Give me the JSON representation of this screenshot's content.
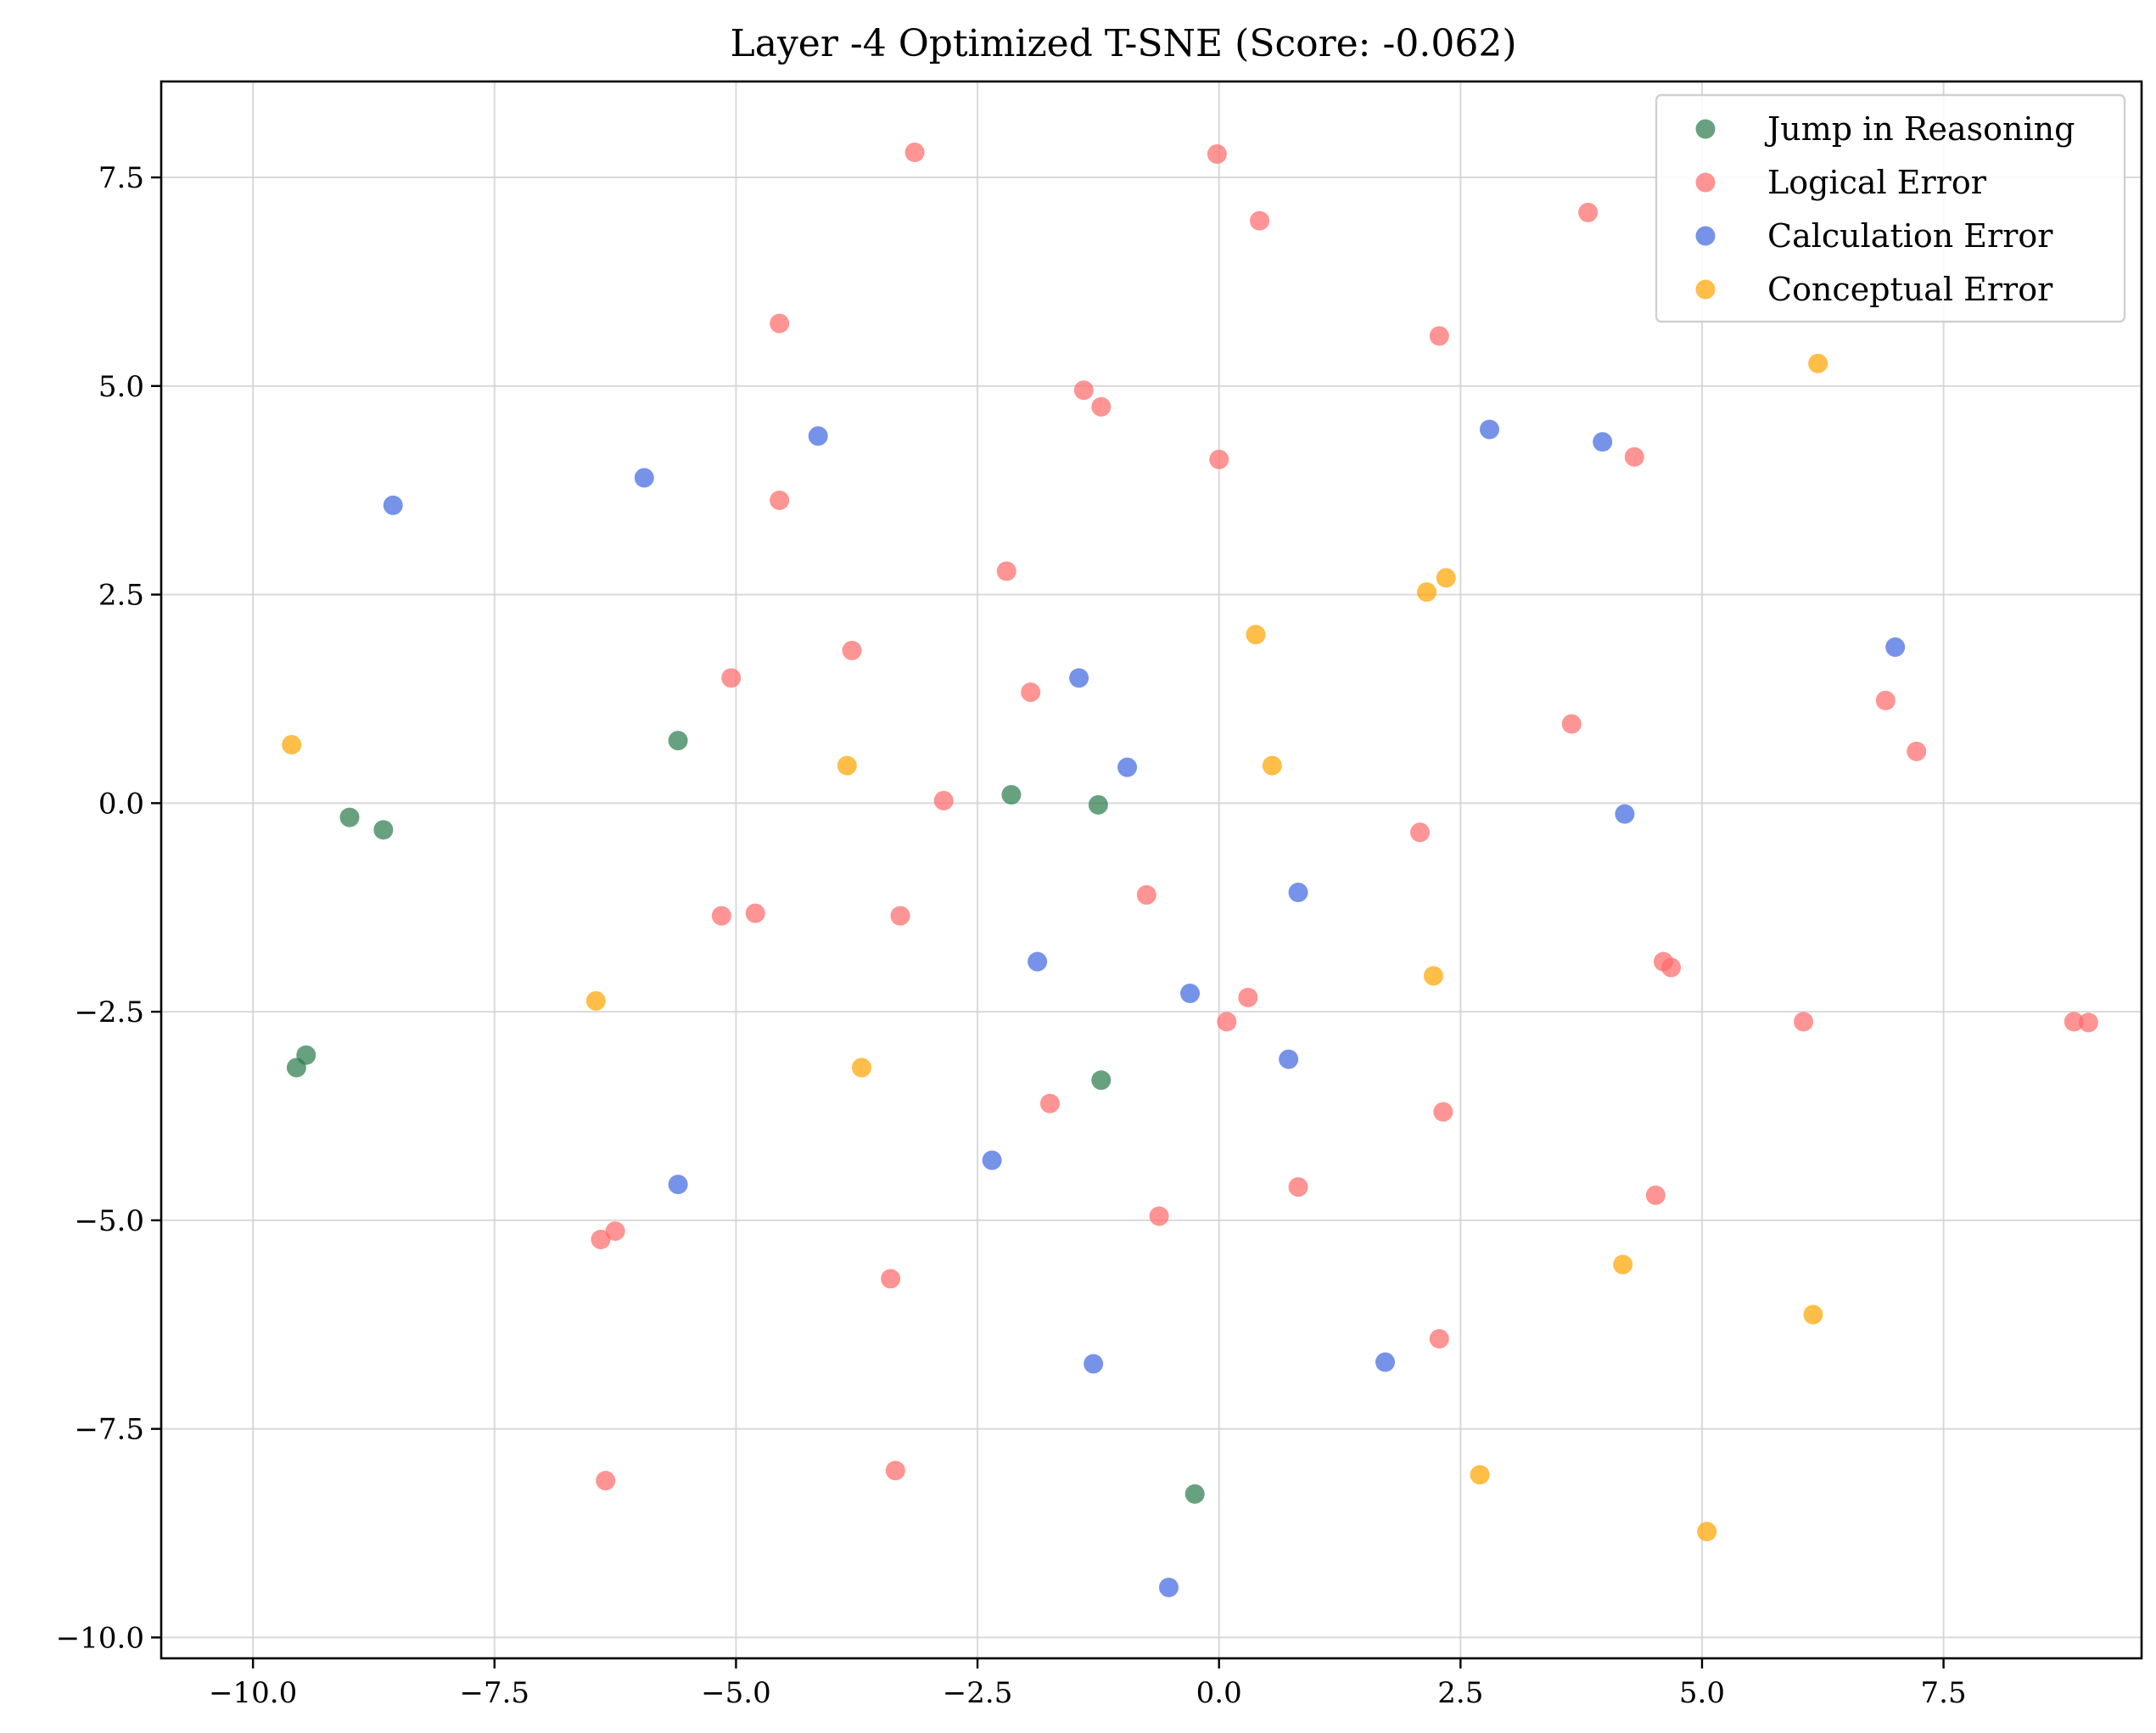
{
  "chart_data": {
    "type": "scatter",
    "title": "Layer -4 Optimized T-SNE (Score: -0.062)",
    "xlabel": "",
    "ylabel": "",
    "xlim": [
      -10.95,
      9.55
    ],
    "ylim": [
      -10.25,
      8.65
    ],
    "xticks": [
      -10.0,
      -7.5,
      -5.0,
      -2.5,
      0.0,
      2.5,
      5.0,
      7.5
    ],
    "yticks": [
      -10.0,
      -7.5,
      -5.0,
      -2.5,
      0.0,
      2.5,
      5.0,
      7.5
    ],
    "xtick_labels": [
      "−10.0",
      "−7.5",
      "−5.0",
      "−2.5",
      "0.0",
      "2.5",
      "5.0",
      "7.5"
    ],
    "ytick_labels": [
      "−10.0",
      "−7.5",
      "−5.0",
      "−2.5",
      "0.0",
      "2.5",
      "5.0",
      "7.5"
    ],
    "grid": true,
    "legend_position": "top-right",
    "series": [
      {
        "name": "Jump in Reasoning",
        "color": "#2e7d4f",
        "points": [
          [
            -9.0,
            -0.17
          ],
          [
            -8.65,
            -0.32
          ],
          [
            -5.6,
            0.75
          ],
          [
            -2.15,
            0.1
          ],
          [
            -1.25,
            -0.02
          ],
          [
            -9.45,
            -3.02
          ],
          [
            -9.55,
            -3.17
          ],
          [
            -1.22,
            -3.32
          ],
          [
            -0.25,
            -8.28
          ]
        ]
      },
      {
        "name": "Logical Error",
        "color": "#ff6b6b",
        "points": [
          [
            -3.15,
            7.8
          ],
          [
            -0.02,
            7.78
          ],
          [
            0.42,
            6.98
          ],
          [
            3.82,
            7.08
          ],
          [
            -4.55,
            5.75
          ],
          [
            2.28,
            5.6
          ],
          [
            -1.4,
            4.95
          ],
          [
            -1.22,
            4.75
          ],
          [
            0.0,
            4.12
          ],
          [
            4.3,
            4.15
          ],
          [
            -4.55,
            3.63
          ],
          [
            -2.2,
            2.78
          ],
          [
            -3.8,
            1.83
          ],
          [
            -5.05,
            1.5
          ],
          [
            -1.95,
            1.33
          ],
          [
            3.65,
            0.95
          ],
          [
            6.9,
            1.23
          ],
          [
            7.22,
            0.62
          ],
          [
            -2.85,
            0.03
          ],
          [
            2.08,
            -0.35
          ],
          [
            -5.15,
            -1.35
          ],
          [
            -4.8,
            -1.32
          ],
          [
            -3.3,
            -1.35
          ],
          [
            -0.75,
            -1.1
          ],
          [
            4.6,
            -1.9
          ],
          [
            4.68,
            -1.97
          ],
          [
            0.3,
            -2.33
          ],
          [
            0.08,
            -2.62
          ],
          [
            6.05,
            -2.62
          ],
          [
            8.85,
            -2.62
          ],
          [
            9.0,
            -2.63
          ],
          [
            -1.75,
            -3.6
          ],
          [
            2.32,
            -3.7
          ],
          [
            0.82,
            -4.6
          ],
          [
            4.52,
            -4.7
          ],
          [
            -0.62,
            -4.95
          ],
          [
            -6.25,
            -5.13
          ],
          [
            -6.4,
            -5.23
          ],
          [
            -3.4,
            -5.7
          ],
          [
            2.28,
            -6.42
          ],
          [
            -3.35,
            -8.0
          ],
          [
            -6.35,
            -8.12
          ]
        ]
      },
      {
        "name": "Calculation Error",
        "color": "#4169e1",
        "points": [
          [
            -8.55,
            3.57
          ],
          [
            -5.95,
            3.9
          ],
          [
            -4.15,
            4.4
          ],
          [
            2.8,
            4.48
          ],
          [
            3.97,
            4.33
          ],
          [
            -1.45,
            1.5
          ],
          [
            -0.95,
            0.43
          ],
          [
            7.0,
            1.87
          ],
          [
            4.2,
            -0.13
          ],
          [
            0.82,
            -1.07
          ],
          [
            -1.88,
            -1.9
          ],
          [
            -0.3,
            -2.28
          ],
          [
            0.72,
            -3.07
          ],
          [
            -2.35,
            -4.28
          ],
          [
            -5.6,
            -4.57
          ],
          [
            -1.3,
            -6.72
          ],
          [
            1.72,
            -6.7
          ],
          [
            -0.52,
            -9.4
          ]
        ]
      },
      {
        "name": "Conceptual Error",
        "color": "#ffa500",
        "points": [
          [
            6.2,
            5.27
          ],
          [
            2.35,
            2.7
          ],
          [
            2.15,
            2.53
          ],
          [
            0.38,
            2.02
          ],
          [
            -9.6,
            0.7
          ],
          [
            -3.85,
            0.45
          ],
          [
            0.55,
            0.45
          ],
          [
            -6.45,
            -2.37
          ],
          [
            2.22,
            -2.07
          ],
          [
            -3.7,
            -3.17
          ],
          [
            4.18,
            -5.53
          ],
          [
            6.15,
            -6.13
          ],
          [
            2.7,
            -8.05
          ],
          [
            5.05,
            -8.73
          ]
        ]
      }
    ]
  }
}
